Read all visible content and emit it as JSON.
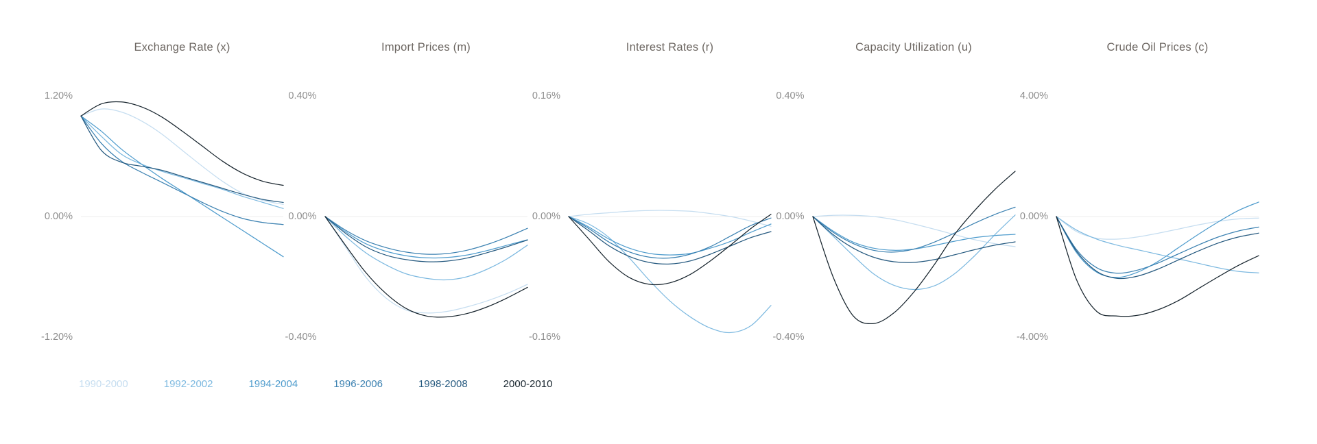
{
  "palette": {
    "1990-2000": "#c5ddf0",
    "1992-2002": "#7db9e0",
    "1994-2004": "#4f9ccd",
    "1996-2006": "#3b81b1",
    "1998-2008": "#25597f",
    "2000-2010": "#17242d"
  },
  "legend": {
    "items": [
      "1990-2000",
      "1992-2002",
      "1994-2004",
      "1996-2006",
      "1998-2008",
      "2000-2010"
    ]
  },
  "chart_data": [
    {
      "type": "line",
      "title": "Exchange Rate (x)",
      "ylim": [
        -1.2,
        1.2
      ],
      "ytick_labels": [
        "1.20%",
        "0.00%",
        "-1.20%"
      ],
      "x_axis_visible": false,
      "grid": "zero-line-only",
      "legend_position": "shared-bottom-left",
      "series": [
        {
          "name": "1990-2000",
          "values": [
            1.0,
            1.07,
            1.04,
            0.95,
            0.82,
            0.66,
            0.5,
            0.35,
            0.23,
            0.16,
            0.12
          ]
        },
        {
          "name": "1992-2002",
          "values": [
            1.0,
            0.8,
            0.62,
            0.52,
            0.45,
            0.39,
            0.33,
            0.27,
            0.2,
            0.14,
            0.08
          ]
        },
        {
          "name": "1994-2004",
          "values": [
            1.0,
            0.85,
            0.67,
            0.52,
            0.38,
            0.25,
            0.12,
            -0.01,
            -0.14,
            -0.27,
            -0.4
          ]
        },
        {
          "name": "1996-2006",
          "values": [
            1.0,
            0.73,
            0.55,
            0.44,
            0.34,
            0.24,
            0.14,
            0.05,
            -0.02,
            -0.06,
            -0.08
          ]
        },
        {
          "name": "1998-2008",
          "values": [
            1.0,
            0.66,
            0.54,
            0.5,
            0.46,
            0.4,
            0.34,
            0.28,
            0.22,
            0.17,
            0.14
          ]
        },
        {
          "name": "2000-2010",
          "values": [
            1.0,
            1.12,
            1.14,
            1.09,
            0.99,
            0.85,
            0.7,
            0.55,
            0.43,
            0.35,
            0.31
          ]
        }
      ]
    },
    {
      "type": "line",
      "title": "Import Prices (m)",
      "ylim": [
        -0.4,
        0.4
      ],
      "ytick_labels": [
        "0.40%",
        "0.00%",
        "-0.40%"
      ],
      "x_axis_visible": false,
      "grid": "zero-line-only",
      "legend_position": "shared-bottom-left",
      "series": [
        {
          "name": "1990-2000",
          "values": [
            0,
            -0.1,
            -0.2,
            -0.27,
            -0.31,
            -0.32,
            -0.315,
            -0.3,
            -0.28,
            -0.255,
            -0.225
          ]
        },
        {
          "name": "1992-2002",
          "values": [
            0,
            -0.065,
            -0.12,
            -0.16,
            -0.19,
            -0.205,
            -0.21,
            -0.2,
            -0.175,
            -0.14,
            -0.095
          ]
        },
        {
          "name": "1994-2004",
          "values": [
            0,
            -0.05,
            -0.09,
            -0.115,
            -0.13,
            -0.137,
            -0.136,
            -0.128,
            -0.113,
            -0.095,
            -0.077
          ]
        },
        {
          "name": "1996-2006",
          "values": [
            0,
            -0.045,
            -0.08,
            -0.103,
            -0.118,
            -0.125,
            -0.123,
            -0.112,
            -0.093,
            -0.068,
            -0.039
          ]
        },
        {
          "name": "1998-2008",
          "values": [
            0,
            -0.055,
            -0.1,
            -0.128,
            -0.143,
            -0.15,
            -0.148,
            -0.138,
            -0.12,
            -0.1,
            -0.078
          ]
        },
        {
          "name": "2000-2010",
          "values": [
            0,
            -0.095,
            -0.185,
            -0.255,
            -0.305,
            -0.33,
            -0.333,
            -0.322,
            -0.3,
            -0.27,
            -0.235
          ]
        }
      ]
    },
    {
      "type": "line",
      "title": "Interest Rates (r)",
      "ylim": [
        -0.16,
        0.16
      ],
      "ytick_labels": [
        "0.16%",
        "0.00%",
        "-0.16%"
      ],
      "x_axis_visible": false,
      "grid": "zero-line-only",
      "legend_position": "shared-bottom-left",
      "series": [
        {
          "name": "1990-2000",
          "values": [
            0,
            0.003,
            0.005,
            0.007,
            0.008,
            0.008,
            0.007,
            0.004,
            0.0,
            -0.006,
            -0.013
          ]
        },
        {
          "name": "1992-2002",
          "values": [
            0,
            -0.01,
            -0.028,
            -0.055,
            -0.085,
            -0.112,
            -0.133,
            -0.148,
            -0.154,
            -0.145,
            -0.118
          ]
        },
        {
          "name": "1994-2004",
          "values": [
            0,
            -0.014,
            -0.03,
            -0.042,
            -0.049,
            -0.051,
            -0.049,
            -0.042,
            -0.033,
            -0.021,
            -0.01
          ]
        },
        {
          "name": "1996-2006",
          "values": [
            0,
            -0.016,
            -0.034,
            -0.047,
            -0.054,
            -0.055,
            -0.05,
            -0.04,
            -0.026,
            -0.012,
            -0.002
          ]
        },
        {
          "name": "1998-2008",
          "values": [
            0,
            -0.019,
            -0.039,
            -0.053,
            -0.061,
            -0.063,
            -0.059,
            -0.05,
            -0.039,
            -0.028,
            -0.02
          ]
        },
        {
          "name": "2000-2010",
          "values": [
            0,
            -0.03,
            -0.06,
            -0.081,
            -0.09,
            -0.088,
            -0.077,
            -0.059,
            -0.038,
            -0.016,
            0.003
          ]
        }
      ]
    },
    {
      "type": "line",
      "title": "Capacity Utilization (u)",
      "ylim": [
        -0.4,
        0.4
      ],
      "ytick_labels": [
        "0.40%",
        "0.00%",
        "-0.40%"
      ],
      "x_axis_visible": false,
      "grid": "zero-line-only",
      "legend_position": "shared-bottom-left",
      "series": [
        {
          "name": "1990-2000",
          "values": [
            0,
            0.004,
            0.004,
            0.0,
            -0.01,
            -0.025,
            -0.042,
            -0.06,
            -0.077,
            -0.09,
            -0.1
          ]
        },
        {
          "name": "1992-2002",
          "values": [
            0,
            -0.065,
            -0.13,
            -0.19,
            -0.228,
            -0.242,
            -0.23,
            -0.19,
            -0.13,
            -0.06,
            0.005
          ]
        },
        {
          "name": "1994-2004",
          "values": [
            0,
            -0.048,
            -0.085,
            -0.105,
            -0.112,
            -0.108,
            -0.096,
            -0.082,
            -0.07,
            -0.063,
            -0.059
          ]
        },
        {
          "name": "1996-2006",
          "values": [
            0,
            -0.052,
            -0.09,
            -0.112,
            -0.118,
            -0.108,
            -0.085,
            -0.055,
            -0.022,
            0.007,
            0.031
          ]
        },
        {
          "name": "1998-2008",
          "values": [
            0,
            -0.06,
            -0.105,
            -0.135,
            -0.15,
            -0.152,
            -0.143,
            -0.127,
            -0.11,
            -0.095,
            -0.084
          ]
        },
        {
          "name": "2000-2010",
          "values": [
            0,
            -0.2,
            -0.33,
            -0.355,
            -0.32,
            -0.25,
            -0.16,
            -0.06,
            0.02,
            0.09,
            0.15
          ]
        }
      ]
    },
    {
      "type": "line",
      "title": "Crude Oil Prices (c)",
      "ylim": [
        -4.0,
        4.0
      ],
      "ytick_labels": [
        "4.00%",
        "0.00%",
        "-4.00%"
      ],
      "x_axis_visible": false,
      "grid": "zero-line-only",
      "legend_position": "shared-bottom-left",
      "series": [
        {
          "name": "1990-2000",
          "values": [
            0,
            -0.5,
            -0.72,
            -0.75,
            -0.68,
            -0.56,
            -0.42,
            -0.28,
            -0.16,
            -0.08,
            -0.05
          ]
        },
        {
          "name": "1992-2002",
          "values": [
            0,
            -0.45,
            -0.75,
            -0.95,
            -1.1,
            -1.25,
            -1.4,
            -1.55,
            -1.7,
            -1.82,
            -1.87
          ]
        },
        {
          "name": "1994-2004",
          "values": [
            0,
            -1.2,
            -1.85,
            -2.02,
            -1.85,
            -1.5,
            -1.05,
            -0.6,
            -0.18,
            0.2,
            0.48
          ]
        },
        {
          "name": "1996-2006",
          "values": [
            0,
            -1.1,
            -1.7,
            -1.88,
            -1.78,
            -1.55,
            -1.25,
            -0.95,
            -0.68,
            -0.48,
            -0.35
          ]
        },
        {
          "name": "1998-2008",
          "values": [
            0,
            -1.15,
            -1.82,
            -2.05,
            -1.98,
            -1.75,
            -1.45,
            -1.15,
            -0.88,
            -0.68,
            -0.55
          ]
        },
        {
          "name": "2000-2010",
          "values": [
            0,
            -2.1,
            -3.15,
            -3.3,
            -3.28,
            -3.1,
            -2.8,
            -2.4,
            -2.0,
            -1.62,
            -1.3
          ]
        }
      ]
    }
  ]
}
